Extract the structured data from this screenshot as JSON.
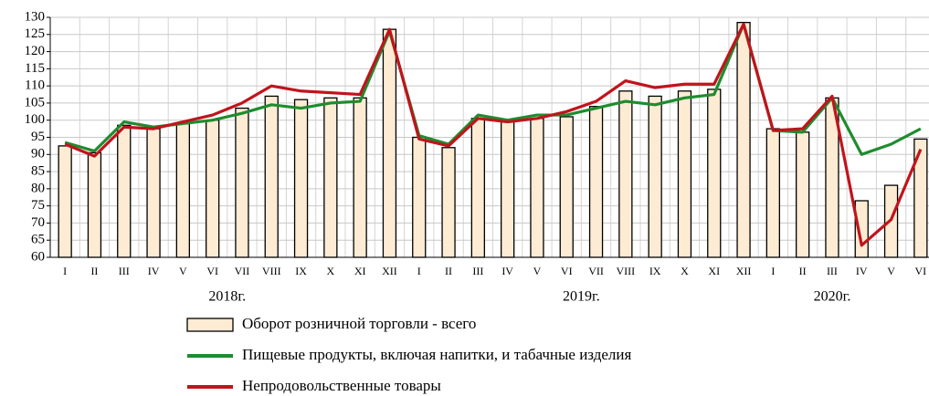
{
  "chart_data": {
    "type": "bar",
    "categories": [
      "I",
      "II",
      "III",
      "IV",
      "V",
      "VI",
      "VII",
      "VIII",
      "IX",
      "X",
      "XI",
      "XII",
      "I",
      "II",
      "III",
      "IV",
      "V",
      "VI",
      "VII",
      "VIII",
      "IX",
      "X",
      "XI",
      "XII",
      "I",
      "II",
      "III",
      "IV",
      "V",
      "VI"
    ],
    "year_labels": [
      "2018г.",
      "2019г.",
      "2020г."
    ],
    "ylim": [
      60,
      130
    ],
    "yticks": [
      60,
      65,
      70,
      75,
      80,
      85,
      90,
      95,
      100,
      105,
      110,
      115,
      120,
      125,
      130
    ],
    "grid": true,
    "legend": "bottom",
    "series": [
      {
        "name": "Оборот розничной торговли - всего",
        "type": "bar",
        "color": "#fdebd3",
        "values": [
          92.5,
          90.5,
          98.5,
          97.5,
          99,
          100,
          103.5,
          107,
          106,
          106.5,
          106.5,
          126.5,
          95,
          92,
          100.5,
          99.5,
          100.5,
          101,
          104,
          108.5,
          107,
          108.5,
          109,
          128.5,
          97.5,
          96.5,
          106.5,
          76.5,
          81,
          94.5
        ]
      },
      {
        "name": "Пищевые продукты, включая напитки,  и табачные изделия",
        "type": "line",
        "color": "#1e8c2e",
        "values": [
          93.5,
          91,
          99.5,
          98,
          99,
          100,
          102,
          104.5,
          103.5,
          105,
          105.5,
          126,
          95.5,
          93,
          101.5,
          100,
          101.5,
          101.5,
          103.5,
          105.5,
          104.5,
          106.5,
          107.5,
          128,
          97,
          96.5,
          106.5,
          90,
          93,
          97.5
        ]
      },
      {
        "name": "Непродовольственные товары",
        "type": "line",
        "color": "#c0141c",
        "values": [
          93,
          89.5,
          98,
          97.5,
          99.5,
          101.5,
          105,
          110,
          108.5,
          108,
          107.5,
          126.5,
          94.5,
          92.5,
          100.5,
          99.5,
          100.5,
          102.5,
          105.5,
          111.5,
          109.5,
          110.5,
          110.5,
          128,
          97,
          97.5,
          107,
          63.5,
          71,
          91.5
        ]
      }
    ]
  }
}
